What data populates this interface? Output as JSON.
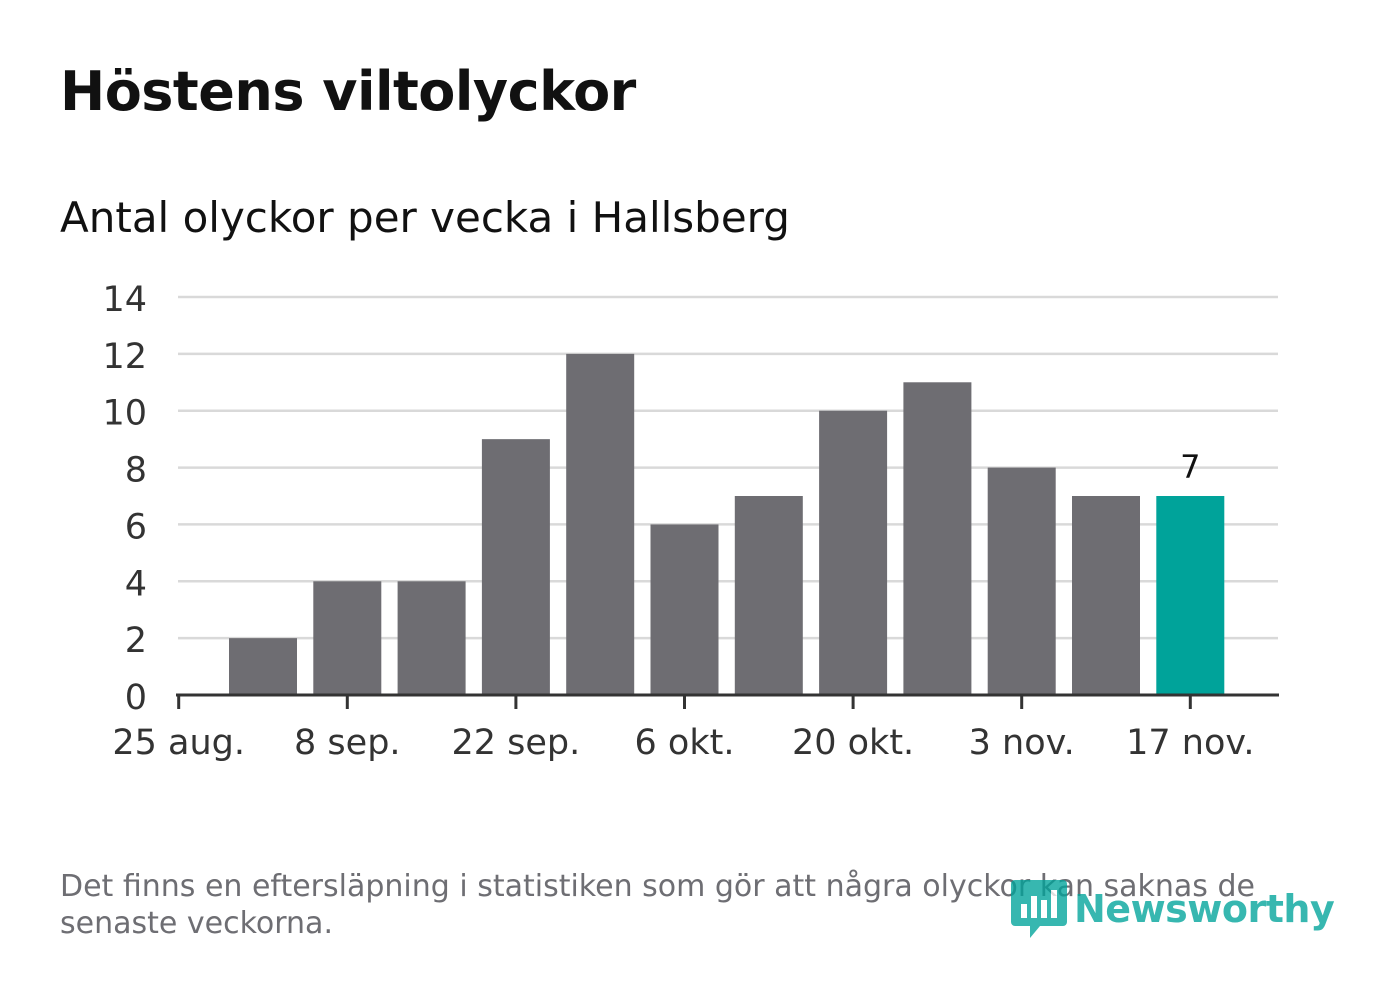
{
  "title": "Höstens viltolyckor",
  "subtitle": "Antal olyckor per vecka i Hallsberg",
  "footnote": "Det finns en eftersläpning i statistiken som gör att några olyckor kan saknas de senaste veckorna.",
  "logo": {
    "text": "Newsworthy",
    "icon": "bar-chart-badge-icon"
  },
  "colors": {
    "bar": "#6e6d72",
    "highlight": "#00a39a",
    "grid": "#d9d9d9",
    "axis": "#333333"
  },
  "chart_data": {
    "type": "bar",
    "title": "Höstens viltolyckor",
    "subtitle": "Antal olyckor per vecka i Hallsberg",
    "xlabel": "",
    "ylabel": "",
    "ylim": [
      0,
      14
    ],
    "yticks": [
      0,
      2,
      4,
      6,
      8,
      10,
      12,
      14
    ],
    "x_tick_labels": [
      "25 aug.",
      "8 sep.",
      "22 sep.",
      "6 okt.",
      "20 okt.",
      "3 nov.",
      "17 nov."
    ],
    "categories": [
      "1 sep.",
      "8 sep.",
      "15 sep.",
      "22 sep.",
      "29 sep.",
      "6 okt.",
      "13 okt.",
      "20 okt.",
      "27 okt.",
      "3 nov.",
      "10 nov.",
      "17 nov."
    ],
    "values": [
      2,
      4,
      4,
      9,
      12,
      6,
      7,
      10,
      11,
      8,
      7,
      7
    ],
    "highlight_index": 11,
    "data_labels": [
      {
        "index": 11,
        "text": "7"
      }
    ],
    "grid": true
  }
}
